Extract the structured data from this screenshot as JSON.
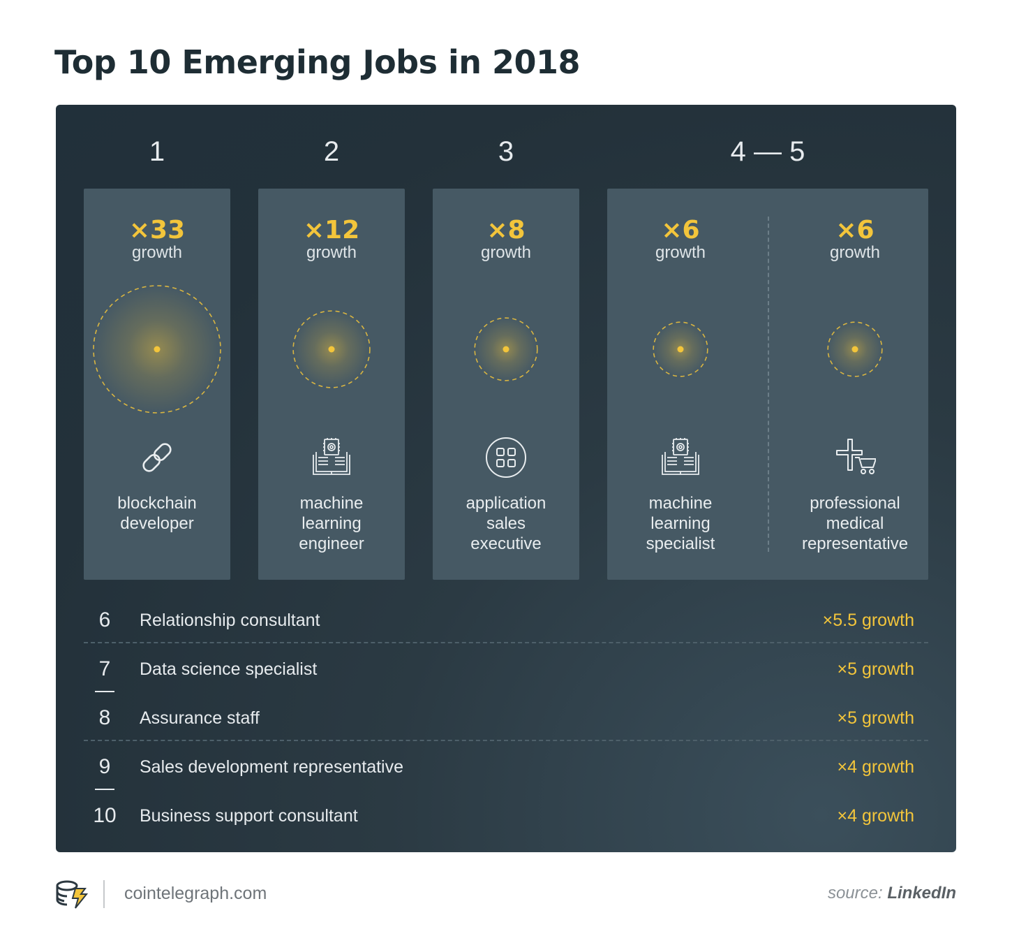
{
  "title": "Top 10 Emerging Jobs in 2018",
  "colors": {
    "accent": "#f3c53b",
    "panel": "#23313a",
    "card": "#465964"
  },
  "ranks_top": [
    "1",
    "2",
    "3",
    "4 — 5"
  ],
  "growth_label": "growth",
  "chart_data": {
    "type": "table",
    "title": "Top 10 Emerging Jobs in 2018",
    "columns": [
      "rank",
      "job",
      "growth"
    ],
    "rows": [
      {
        "rank": 1,
        "job": "blockchain developer",
        "growth": 33,
        "icon": "chain-link-icon"
      },
      {
        "rank": 2,
        "job": "machine learning engineer",
        "growth": 12,
        "icon": "circuit-book-icon"
      },
      {
        "rank": 3,
        "job": "application sales executive",
        "growth": 8,
        "icon": "app-grid-icon"
      },
      {
        "rank": 4,
        "job": "machine learning specialist",
        "growth": 6,
        "icon": "circuit-book-icon"
      },
      {
        "rank": 5,
        "job": "professional medical representative",
        "growth": 6,
        "icon": "medical-cart-icon"
      },
      {
        "rank": 6,
        "job": "Relationship consultant",
        "growth": 5.5
      },
      {
        "rank": 7,
        "job": "Data science specialist",
        "growth": 5
      },
      {
        "rank": 8,
        "job": "Assurance staff",
        "growth": 5
      },
      {
        "rank": 9,
        "job": "Sales development representative",
        "growth": 4
      },
      {
        "rank": 10,
        "job": "Business support consultant",
        "growth": 4
      }
    ]
  },
  "top_cards": [
    {
      "mult": "×33",
      "growth": 33,
      "lines": [
        "blockchain",
        "developer"
      ],
      "icon": "chain-link-icon"
    },
    {
      "mult": "×12",
      "growth": 12,
      "lines": [
        "machine",
        "learning",
        "engineer"
      ],
      "icon": "circuit-book-icon"
    },
    {
      "mult": "×8",
      "growth": 8,
      "lines": [
        "application",
        "sales",
        "executive"
      ],
      "icon": "app-grid-icon"
    },
    {
      "mult": "×6",
      "growth": 6,
      "lines": [
        "machine",
        "learning",
        "specialist"
      ],
      "icon": "circuit-book-icon"
    },
    {
      "mult": "×6",
      "growth": 6,
      "lines": [
        "professional",
        "medical",
        "representative"
      ],
      "icon": "medical-cart-icon"
    }
  ],
  "list": [
    {
      "num": "6",
      "name": "Relationship consultant",
      "growth": "×5.5 growth"
    },
    {
      "num": "7",
      "name": "Data science specialist",
      "growth": "×5 growth"
    },
    {
      "num": "8",
      "name": "Assurance staff",
      "growth": "×5 growth"
    },
    {
      "num": "9",
      "name": "Sales development representative",
      "growth": "×4 growth"
    },
    {
      "num": "10",
      "name": "Business support consultant",
      "growth": "×4 growth"
    }
  ],
  "footer": {
    "site": "cointelegraph.com",
    "source_prefix": "source:",
    "source_name": "LinkedIn",
    "logo_icon": "cointelegraph-logo-icon"
  }
}
